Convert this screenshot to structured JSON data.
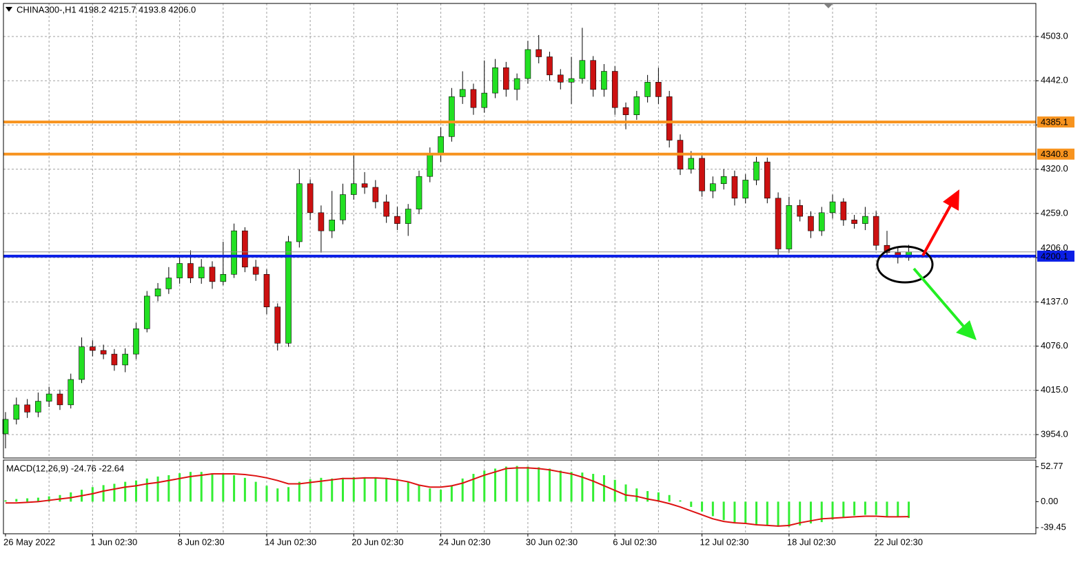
{
  "chart_data": {
    "type": "candlestick",
    "title": "CHINA300-,H1  4198.2 4215.7 4193.8 4206.0",
    "up_color": "#22e022",
    "down_color": "#cc1111",
    "categories": [
      "26 May 2022",
      null,
      null,
      null,
      null,
      null,
      null,
      null,
      "1 Jun 02:30",
      null,
      null,
      null,
      null,
      null,
      null,
      null,
      "8 Jun 02:30",
      null,
      null,
      null,
      null,
      null,
      null,
      null,
      "14 Jun 02:30",
      null,
      null,
      null,
      null,
      null,
      null,
      null,
      "20 Jun 02:30",
      null,
      null,
      null,
      null,
      null,
      null,
      null,
      "24 Jun 02:30",
      null,
      null,
      null,
      null,
      null,
      null,
      null,
      "30 Jun 02:30",
      null,
      null,
      null,
      null,
      null,
      null,
      null,
      "6 Jul 02:30",
      null,
      null,
      null,
      null,
      null,
      null,
      null,
      "12 Jul 02:30",
      null,
      null,
      null,
      null,
      null,
      null,
      null,
      "18 Jul 02:30",
      null,
      null,
      null,
      null,
      null,
      null,
      null,
      "22 Jul 02:30",
      null,
      null,
      null
    ],
    "open": [
      3955,
      3975,
      3995,
      3985,
      4000,
      4010,
      3995,
      4030,
      4075,
      4070,
      4065,
      4050,
      4065,
      4100,
      4145,
      4155,
      4170,
      4190,
      4170,
      4185,
      4165,
      4175,
      4235,
      4185,
      4175,
      4130,
      4080,
      4220,
      4300,
      4260,
      4235,
      4250,
      4285,
      4300,
      4295,
      4275,
      4255,
      4245,
      4265,
      4310,
      4340,
      4365,
      4420,
      4430,
      4405,
      4425,
      4460,
      4430,
      4445,
      4485,
      4475,
      4450,
      4440,
      4445,
      4470,
      4430,
      4455,
      4405,
      4395,
      4420,
      4440,
      4420,
      4360,
      4320,
      4335,
      4290,
      4300,
      4310,
      4280,
      4305,
      4330,
      4280,
      4210,
      4270,
      4255,
      4235,
      4260,
      4275,
      4250,
      4245,
      4255,
      4215,
      4205,
      4198.2
    ],
    "high": [
      3985,
      4005,
      4003,
      4012,
      4020,
      4016,
      4038,
      4088,
      4084,
      4078,
      4072,
      4073,
      4108,
      4152,
      4163,
      4185,
      4200,
      4208,
      4196,
      4193,
      4220,
      4245,
      4240,
      4195,
      4182,
      4135,
      4228,
      4320,
      4306,
      4270,
      4290,
      4300,
      4340,
      4316,
      4305,
      4285,
      4268,
      4272,
      4318,
      4350,
      4378,
      4432,
      4455,
      4438,
      4470,
      4472,
      4468,
      4452,
      4497,
      4505,
      4482,
      4458,
      4475,
      4515,
      4476,
      4465,
      4462,
      4412,
      4428,
      4450,
      4460,
      4428,
      4368,
      4345,
      4340,
      4310,
      4320,
      4318,
      4313,
      4337,
      4336,
      4288,
      4282,
      4278,
      4262,
      4268,
      4285,
      4280,
      4257,
      4268,
      4262,
      4235,
      4212,
      4215.7
    ],
    "low": [
      3935,
      3968,
      3977,
      3978,
      3992,
      3988,
      3990,
      4025,
      4062,
      4058,
      4042,
      4040,
      4058,
      4095,
      4138,
      4148,
      4162,
      4163,
      4162,
      4155,
      4160,
      4170,
      4178,
      4166,
      4120,
      4070,
      4075,
      4212,
      4250,
      4205,
      4225,
      4244,
      4278,
      4286,
      4266,
      4246,
      4236,
      4228,
      4258,
      4302,
      4330,
      4358,
      4410,
      4395,
      4398,
      4418,
      4420,
      4415,
      4438,
      4466,
      4442,
      4430,
      4410,
      4438,
      4420,
      4420,
      4395,
      4375,
      4388,
      4412,
      4410,
      4350,
      4312,
      4314,
      4282,
      4280,
      4292,
      4270,
      4273,
      4298,
      4273,
      4200,
      4205,
      4248,
      4225,
      4228,
      4252,
      4242,
      4238,
      4236,
      4208,
      4198,
      4190,
      4193.8
    ],
    "close": [
      3975,
      3995,
      3985,
      4000,
      4010,
      3995,
      4030,
      4075,
      4070,
      4065,
      4050,
      4065,
      4100,
      4145,
      4155,
      4170,
      4190,
      4170,
      4185,
      4165,
      4175,
      4235,
      4185,
      4175,
      4130,
      4080,
      4220,
      4300,
      4260,
      4235,
      4250,
      4285,
      4300,
      4295,
      4275,
      4255,
      4245,
      4265,
      4310,
      4340,
      4365,
      4420,
      4430,
      4405,
      4425,
      4460,
      4430,
      4445,
      4485,
      4475,
      4450,
      4440,
      4445,
      4470,
      4430,
      4455,
      4405,
      4395,
      4420,
      4440,
      4420,
      4360,
      4320,
      4335,
      4290,
      4300,
      4310,
      4280,
      4305,
      4330,
      4280,
      4210,
      4270,
      4255,
      4235,
      4260,
      4275,
      4250,
      4245,
      4255,
      4215,
      4205,
      4198.2,
      4206.0
    ],
    "ylim": [
      3921.7,
      4548.6
    ],
    "yticks": [
      {
        "value": 3954,
        "label": "3954.0"
      },
      {
        "value": 4015,
        "label": "4015.0"
      },
      {
        "value": 4076,
        "label": "4076.0"
      },
      {
        "value": 4137,
        "label": "4137.0"
      },
      {
        "value": 4198,
        "label": "4198.0"
      },
      {
        "value": 4259,
        "label": "4259.0"
      },
      {
        "value": 4320,
        "label": "4320.0"
      },
      {
        "value": 4381,
        "label": "4381.0"
      },
      {
        "value": 4442,
        "label": "4442.0"
      },
      {
        "value": 4503,
        "label": "4503.0"
      }
    ],
    "current_price": {
      "value": 4206.0,
      "label": "4206.0"
    },
    "levels": [
      {
        "value": 4385.1,
        "color": "#f7931e"
      },
      {
        "value": 4340.8,
        "color": "#f7931e"
      },
      {
        "value": 4200.1,
        "color": "#0a1ee6"
      }
    ],
    "grid": true,
    "macd": {
      "title": "MACD(12,26,9) -24.76 -22.64",
      "ylim": [
        -48.6,
        62.9
      ],
      "yticks": [
        52.77,
        {
          "value": 0,
          "label": "0.00"
        },
        -39.45
      ],
      "histogram": {
        "color": "#33ee33",
        "values": [
          2,
          4,
          5,
          6,
          8,
          10,
          14,
          18,
          22,
          25,
          27,
          30,
          32,
          35,
          38,
          40,
          43,
          45,
          45,
          43,
          42,
          40,
          36,
          30,
          24,
          20,
          22,
          30,
          34,
          36,
          35,
          36,
          37,
          37,
          37,
          36,
          34,
          30,
          25,
          20,
          18,
          25,
          35,
          42,
          47,
          50,
          53,
          54,
          53,
          52,
          50,
          47,
          45,
          44,
          42,
          40,
          33,
          26,
          20,
          16,
          14,
          10,
          2,
          -8,
          -15,
          -22,
          -28,
          -32,
          -34,
          -35,
          -36,
          -38,
          -38,
          -36,
          -33,
          -31,
          -27,
          -24,
          -21,
          -20,
          -20,
          -22,
          -23,
          -24.76
        ]
      },
      "signal": {
        "color": "#dd1111",
        "values": [
          -2,
          -2,
          -1,
          0,
          2,
          4,
          6,
          9,
          12,
          16,
          19,
          22,
          24,
          27,
          29,
          32,
          35,
          38,
          40,
          42,
          42,
          42,
          41,
          39,
          36,
          32,
          27,
          27,
          29,
          31,
          33,
          35,
          35,
          36,
          36,
          35,
          33,
          30,
          25,
          22,
          22,
          24,
          28,
          34,
          40,
          45,
          50,
          51,
          51,
          50,
          48,
          45,
          42,
          37,
          31,
          24,
          17,
          10,
          8,
          4,
          1,
          -3,
          -8,
          -14,
          -20,
          -26,
          -30,
          -32,
          -33,
          -35,
          -36,
          -37,
          -36,
          -32,
          -29,
          -26,
          -25,
          -24,
          -23,
          -22,
          -22,
          -23,
          -23,
          -22.64
        ]
      }
    }
  }
}
